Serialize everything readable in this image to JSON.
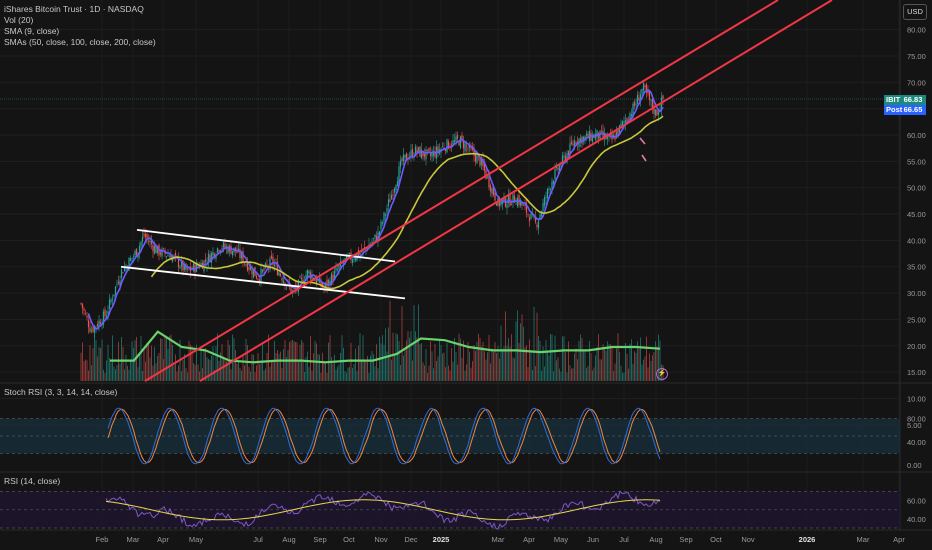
{
  "header": {
    "title": "iShares Bitcoin Trust · 1D · NASDAQ",
    "indicators": [
      "Vol (20)",
      "SMA (9, close)",
      "SMAs (50, close, 100, close, 200, close)"
    ]
  },
  "currency_button": "USD",
  "price_tags": {
    "ibit": {
      "label": "IBIT",
      "value": "66.83"
    },
    "post": {
      "label": "Post",
      "value": "66.65"
    }
  },
  "panes": {
    "stoch_rsi_label": "Stoch RSI (3, 3, 14, 14, close)",
    "rsi_label": "RSI (14, close)"
  },
  "colors": {
    "background": "#141414",
    "up": "#26a69a",
    "down": "#ef5350",
    "sma9": "#6a5cff",
    "sma_long": "#c8c83a",
    "vol_ma": "#69d36e",
    "channel": "#f23645",
    "flag": "#ffffff",
    "stoch_k": "#2f6bd8",
    "stoch_d": "#f0883e",
    "rsi": "#7e57c2",
    "rsi_ma": "#e8d94c"
  },
  "chart_data": [
    {
      "type": "candlestick",
      "name": "IBIT",
      "price_axis_ticks": [
        "80.00",
        "75.00",
        "70.00",
        "65.00",
        "60.00",
        "55.00",
        "50.00",
        "45.00",
        "40.00",
        "35.00",
        "30.00",
        "25.00",
        "20.00",
        "15.00",
        "10.00",
        "5.00"
      ],
      "time_axis_ticks": [
        "Feb",
        "Mar",
        "Apr",
        "May",
        "Jul",
        "Aug",
        "Sep",
        "Oct",
        "Nov",
        "Dec",
        "2025",
        "Mar",
        "Apr",
        "May",
        "Jun",
        "Jul",
        "Aug",
        "Sep",
        "Oct",
        "Nov",
        "2026",
        "Mar",
        "Apr"
      ],
      "ylim": [
        2,
        84
      ],
      "close_keyframes": [
        {
          "date": "Jan 12",
          "close": 28
        },
        {
          "date": "Jan 22",
          "close": 23
        },
        {
          "date": "Feb 5",
          "close": 26
        },
        {
          "date": "Feb 20",
          "close": 34
        },
        {
          "date": "Mar 5",
          "close": 38
        },
        {
          "date": "Mar 12",
          "close": 41
        },
        {
          "date": "Mar 25",
          "close": 38
        },
        {
          "date": "Apr 10",
          "close": 37
        },
        {
          "date": "Apr 25",
          "close": 34
        },
        {
          "date": "May 10",
          "close": 36
        },
        {
          "date": "May 25",
          "close": 39
        },
        {
          "date": "Jun 10",
          "close": 38
        },
        {
          "date": "Jul 1",
          "close": 33
        },
        {
          "date": "Jul 15",
          "close": 36
        },
        {
          "date": "Aug 5",
          "close": 30
        },
        {
          "date": "Aug 20",
          "close": 34
        },
        {
          "date": "Sep 5",
          "close": 31
        },
        {
          "date": "Sep 25",
          "close": 36
        },
        {
          "date": "Oct 15",
          "close": 38
        },
        {
          "date": "Oct 30",
          "close": 41
        },
        {
          "date": "Nov 12",
          "close": 49
        },
        {
          "date": "Nov 22",
          "close": 55
        },
        {
          "date": "Dec 5",
          "close": 57
        },
        {
          "date": "Dec 20",
          "close": 56
        },
        {
          "date": "Jan 5 2025",
          "close": 58
        },
        {
          "date": "Jan 20 2025",
          "close": 59
        },
        {
          "date": "Feb 10 2025",
          "close": 55
        },
        {
          "date": "Feb 28 2025",
          "close": 47
        },
        {
          "date": "Mar 20 2025",
          "close": 48
        },
        {
          "date": "Apr 8 2025",
          "close": 43
        },
        {
          "date": "Apr 25 2025",
          "close": 52
        },
        {
          "date": "May 15 2025",
          "close": 59
        },
        {
          "date": "Jun 5 2025",
          "close": 60
        },
        {
          "date": "Jun 20 2025",
          "close": 59
        },
        {
          "date": "Jul 10 2025",
          "close": 65
        },
        {
          "date": "Jul 20 2025",
          "close": 69
        },
        {
          "date": "Aug 1 2025",
          "close": 64
        },
        {
          "date": "Aug 8 2025",
          "close": 66.83
        }
      ],
      "overlays": {
        "sma9_last": 66.5,
        "sma_long_last": 63,
        "flag_upper": {
          "from": {
            "date": "Mar 5",
            "y": 42
          },
          "to": {
            "date": "Nov 15",
            "y": 36
          }
        },
        "flag_lower": {
          "from": {
            "date": "Feb 20",
            "y": 35
          },
          "to": {
            "date": "Nov 25",
            "y": 29
          }
        },
        "channel_upper": {
          "from": {
            "date": "Aug 15",
            "y": 2
          },
          "to": {
            "date": "Jan 2026",
            "y": 84
          }
        },
        "channel_lower": {
          "from": {
            "date": "Aug 25",
            "y": 2
          },
          "to": {
            "date": "Mar 2026",
            "y": 84
          }
        }
      },
      "last_price": 66.83,
      "post_market_price": 66.65
    },
    {
      "type": "bar",
      "name": "Vol (20)",
      "note_ma_level_peak": 14.5,
      "vol_ma_keyframes": [
        6,
        6,
        14.5,
        10,
        9,
        6,
        5.5,
        6,
        6,
        5.5,
        6,
        6,
        8,
        12.5,
        12,
        10,
        9,
        9,
        8.5,
        9,
        9,
        10,
        10,
        9.5
      ]
    },
    {
      "type": "line",
      "name": "Stoch RSI",
      "ticks": [
        "80.00",
        "40.00",
        "0.00"
      ],
      "ylim": [
        0,
        100
      ],
      "band": [
        20,
        80
      ]
    },
    {
      "type": "line",
      "name": "RSI",
      "ticks": [
        "60.00",
        "40.00"
      ],
      "ylim": [
        30,
        85
      ],
      "band": [
        30,
        70
      ]
    }
  ]
}
